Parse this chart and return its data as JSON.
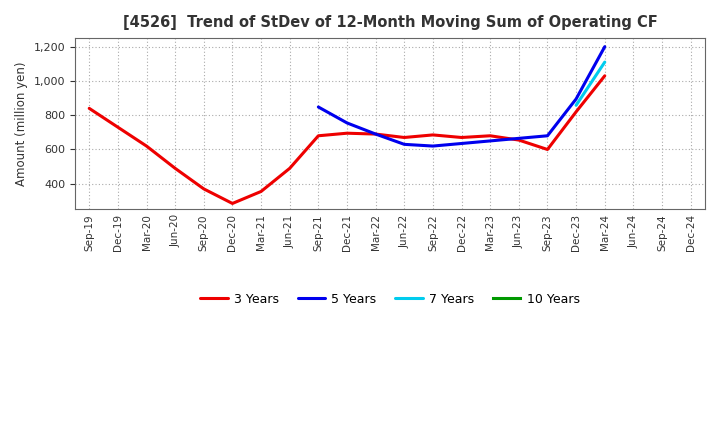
{
  "title": "[4526]  Trend of StDev of 12-Month Moving Sum of Operating CF",
  "ylabel": "Amount (million yen)",
  "ylim": [
    250,
    1250
  ],
  "yticks": [
    400,
    600,
    800,
    1000,
    1200
  ],
  "background_color": "#ffffff",
  "plot_bg_color": "#f0f0f0",
  "grid_color": "#aaaaaa",
  "series": {
    "3 Years": {
      "color": "#ee0000",
      "x": [
        "Sep-19",
        "Dec-19",
        "Mar-20",
        "Jun-20",
        "Sep-20",
        "Dec-20",
        "Mar-21",
        "Jun-21",
        "Sep-21",
        "Dec-21",
        "Mar-22",
        "Jun-22",
        "Sep-22",
        "Dec-22",
        "Mar-23",
        "Jun-23",
        "Sep-23",
        "Dec-23",
        "Mar-24"
      ],
      "y": [
        840,
        730,
        620,
        490,
        370,
        285,
        355,
        490,
        680,
        695,
        690,
        670,
        685,
        670,
        680,
        655,
        600,
        820,
        1030
      ]
    },
    "5 Years": {
      "color": "#0000ee",
      "x": [
        "Sep-21",
        "Dec-21",
        "Mar-22",
        "Jun-22",
        "Sep-22",
        "Dec-22",
        "Mar-23",
        "Jun-23",
        "Sep-23",
        "Dec-23",
        "Mar-24"
      ],
      "y": [
        848,
        755,
        690,
        630,
        620,
        635,
        650,
        665,
        680,
        895,
        1200
      ]
    },
    "7 Years": {
      "color": "#00ccee",
      "x": [
        "Dec-23",
        "Mar-24"
      ],
      "y": [
        858,
        1110
      ]
    },
    "10 Years": {
      "color": "#009900",
      "x": [],
      "y": []
    }
  },
  "x_labels": [
    "Sep-19",
    "Dec-19",
    "Mar-20",
    "Jun-20",
    "Sep-20",
    "Dec-20",
    "Mar-21",
    "Jun-21",
    "Sep-21",
    "Dec-21",
    "Mar-22",
    "Jun-22",
    "Sep-22",
    "Dec-22",
    "Mar-23",
    "Jun-23",
    "Sep-23",
    "Dec-23",
    "Mar-24",
    "Jun-24",
    "Sep-24",
    "Dec-24"
  ],
  "legend_order": [
    "3 Years",
    "5 Years",
    "7 Years",
    "10 Years"
  ],
  "linewidth": 2.2
}
